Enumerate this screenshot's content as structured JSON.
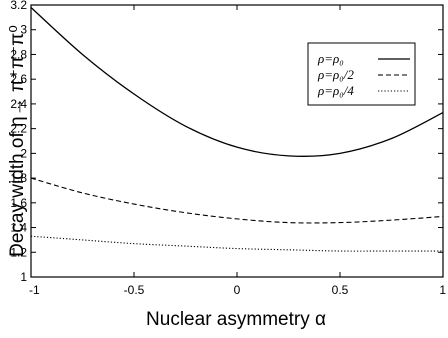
{
  "chart_data": {
    "type": "line",
    "title": "",
    "xlabel": "Nuclear asymmetry α",
    "ylabel": "Decay width of η→ π⁺π⁻π⁰",
    "xlim": [
      -1,
      1
    ],
    "ylim": [
      1,
      3.2
    ],
    "xticks": [
      "-1",
      "-0.5",
      "0",
      "0.5",
      "1"
    ],
    "yticks": [
      "1",
      "1.2",
      "1.4",
      "1.6",
      "1.8",
      "2",
      "2.2",
      "2.4",
      "2.6",
      "2.8",
      "3",
      "3.2"
    ],
    "legend_position": "top-right",
    "grid": false,
    "series": [
      {
        "name": "ρ=ρ₀",
        "style": "solid",
        "x": [
          -1,
          -0.75,
          -0.5,
          -0.25,
          0,
          0.25,
          0.5,
          0.75,
          1
        ],
        "y": [
          3.18,
          2.8,
          2.48,
          2.22,
          2.05,
          1.98,
          2.0,
          2.12,
          2.33
        ]
      },
      {
        "name": "ρ=ρ₀/2",
        "style": "dashed",
        "x": [
          -1,
          -0.75,
          -0.5,
          -0.25,
          0,
          0.25,
          0.5,
          0.75,
          1
        ],
        "y": [
          1.8,
          1.68,
          1.59,
          1.52,
          1.47,
          1.44,
          1.44,
          1.46,
          1.49
        ]
      },
      {
        "name": "ρ=ρ₀/4",
        "style": "dotted",
        "x": [
          -1,
          -0.75,
          -0.5,
          -0.25,
          0,
          0.25,
          0.5,
          0.75,
          1
        ],
        "y": [
          1.33,
          1.3,
          1.27,
          1.25,
          1.23,
          1.22,
          1.21,
          1.21,
          1.21
        ]
      }
    ]
  }
}
